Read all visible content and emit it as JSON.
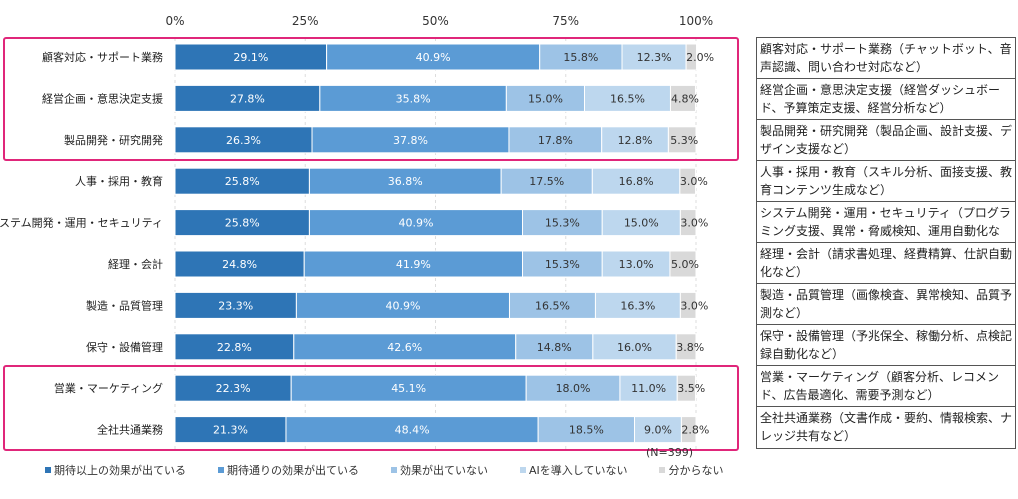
{
  "chart_data": {
    "type": "bar",
    "orientation": "horizontal",
    "stacked": true,
    "xlim": [
      0,
      100
    ],
    "x_tick_labels": [
      "0%",
      "25%",
      "50%",
      "75%",
      "100%"
    ],
    "grid": true,
    "legend_position": "bottom",
    "categories": [
      "顧客対応・サポート業務",
      "経営企画・意思決定支援",
      "製品開発・研究開発",
      "人事・採用・教育",
      "システム開発・運用・セキュリティ",
      "経理・会計",
      "製造・品質管理",
      "保守・設備管理",
      "営業・マーケティング",
      "全社共通業務"
    ],
    "series": [
      {
        "name": "期待以上の効果が出ている",
        "color": "#2E75B6",
        "values": [
          29.1,
          27.8,
          26.3,
          25.8,
          25.8,
          24.8,
          23.3,
          22.8,
          22.3,
          21.3
        ]
      },
      {
        "name": "期待通りの効果が出ている",
        "color": "#5B9BD5",
        "values": [
          40.9,
          35.8,
          37.8,
          36.8,
          40.9,
          41.9,
          40.9,
          42.6,
          45.1,
          48.4
        ]
      },
      {
        "name": "効果が出ていない",
        "color": "#9DC3E6",
        "values": [
          15.8,
          15.0,
          17.8,
          17.5,
          15.3,
          15.3,
          16.5,
          14.8,
          18.0,
          18.5
        ]
      },
      {
        "name": "AIを導入していない",
        "color": "#BDD7EE",
        "values": [
          12.3,
          16.5,
          12.8,
          16.8,
          15.0,
          13.0,
          16.3,
          16.0,
          11.0,
          9.0
        ]
      },
      {
        "name": "分からない",
        "color": "#D9D9D9",
        "values": [
          2.0,
          4.8,
          5.3,
          3.0,
          3.0,
          5.0,
          3.0,
          3.8,
          3.5,
          2.8
        ]
      }
    ],
    "highlighted_categories": [
      "顧客対応・サポート業務",
      "経営企画・意思決定支援",
      "製品開発・研究開発",
      "営業・マーケティング",
      "全社共通業務"
    ],
    "highlight_color": "#E0267A",
    "annotation": "(N=399)"
  },
  "descriptions": [
    "顧客対応・サポート業務（チャットボット、音声認識、問い合わせ対応など）",
    "経営企画・意思決定支援（経営ダッシュボード、予算策定支援、経営分析など）",
    "製品開発・研究開発（製品企画、設計支援、デザイン支援など）",
    "人事・採用・教育（スキル分析、面接支援、教育コンテンツ生成など）",
    "システム開発・運用・セキュリティ（プログラミング支援、異常・脅威検知、運用自動化など）",
    "経理・会計（請求書処理、経費精算、仕訳自動化など）",
    "製造・品質管理（画像検査、異常検知、品質予測など）",
    "保守・設備管理（予兆保全、稼働分析、点検記録自動化など）",
    "営業・マーケティング（顧客分析、レコメンド、広告最適化、需要予測など）",
    "全社共通業務（文書作成・要約、情報検索、ナレッジ共有など）"
  ]
}
